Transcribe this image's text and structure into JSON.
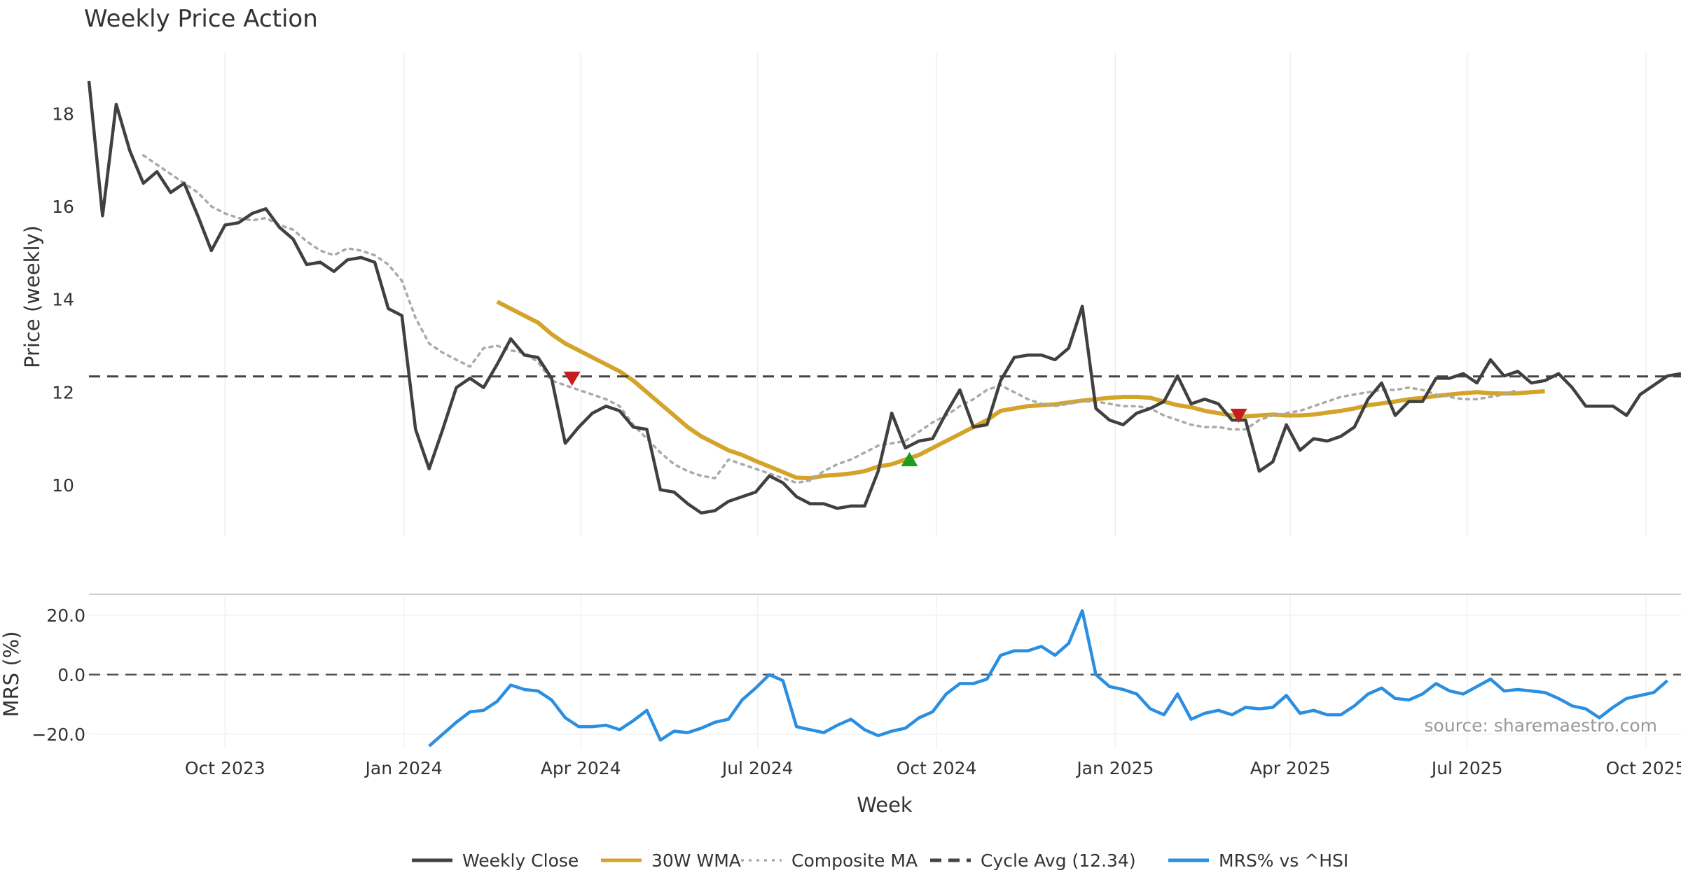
{
  "chart_data": {
    "type": "line",
    "title": "Weekly Price Action",
    "source": "source: sharemaestro.com",
    "xlabel": "Week",
    "x_ticks": [
      "Oct 2023",
      "Jan 2024",
      "Apr 2024",
      "Jul 2024",
      "Oct 2024",
      "Jan 2025",
      "Apr 2025",
      "Jul 2025",
      "Oct 2025"
    ],
    "start_week": "2023-07-23",
    "week_count": 118,
    "top_panel": {
      "ylabel": "Price (weekly)",
      "ylim": [
        8.9,
        19.3
      ],
      "y_ticks": [
        10,
        12,
        14,
        16,
        18
      ],
      "series": [
        {
          "name": "Weekly Close",
          "color": "#404040",
          "style": "solid",
          "start": 0,
          "values": [
            18.7,
            15.8,
            18.2,
            17.2,
            16.5,
            16.75,
            16.3,
            16.5,
            15.8,
            15.05,
            15.6,
            15.65,
            15.85,
            15.95,
            15.55,
            15.3,
            14.75,
            14.8,
            14.6,
            14.85,
            14.9,
            14.8,
            13.8,
            13.65,
            11.2,
            10.35,
            11.2,
            12.1,
            12.3,
            12.1,
            12.6,
            13.15,
            12.8,
            12.75,
            12.3,
            10.9,
            11.25,
            11.55,
            11.7,
            11.6,
            11.25,
            11.2,
            9.9,
            9.85,
            9.6,
            9.4,
            9.45,
            9.65,
            9.75,
            9.85,
            10.2,
            10.05,
            9.75,
            9.6,
            9.6,
            9.5,
            9.55,
            9.55,
            10.3,
            11.55,
            10.8,
            10.95,
            11.0,
            11.55,
            12.05,
            11.25,
            11.3,
            12.25,
            12.75,
            12.8,
            12.8,
            12.7,
            12.95,
            13.85,
            11.65,
            11.4,
            11.3,
            11.55,
            11.65,
            11.8,
            12.35,
            11.75,
            11.85,
            11.75,
            11.4,
            11.4,
            10.3,
            10.5,
            11.3,
            10.75,
            11.0,
            10.95,
            11.05,
            11.25,
            11.85,
            12.2,
            11.5,
            11.8,
            11.8,
            12.3,
            12.3,
            12.4,
            12.2,
            12.7,
            12.35,
            12.45,
            12.2,
            12.25,
            12.4,
            12.1,
            11.7,
            11.7,
            11.7,
            11.5,
            11.95,
            12.15,
            12.35,
            12.4
          ]
        },
        {
          "name": "30W WMA",
          "color": "#D4A32A",
          "style": "solid",
          "start": 30,
          "values": [
            13.95,
            13.8,
            13.65,
            13.5,
            13.25,
            13.05,
            12.9,
            12.75,
            12.6,
            12.45,
            12.25,
            12.0,
            11.75,
            11.5,
            11.25,
            11.05,
            10.9,
            10.75,
            10.65,
            10.52,
            10.4,
            10.28,
            10.16,
            10.15,
            10.2,
            10.22,
            10.25,
            10.3,
            10.4,
            10.45,
            10.55,
            10.65,
            10.8,
            10.95,
            11.1,
            11.25,
            11.4,
            11.6,
            11.65,
            11.7,
            11.72,
            11.74,
            11.78,
            11.82,
            11.85,
            11.88,
            11.9,
            11.9,
            11.88,
            11.8,
            11.72,
            11.68,
            11.6,
            11.55,
            11.5,
            11.48,
            11.5,
            11.52,
            11.5,
            11.5,
            11.52,
            11.56,
            11.6,
            11.65,
            11.72,
            11.76,
            11.8,
            11.85,
            11.88,
            11.92,
            11.95,
            11.98,
            12.0,
            11.98,
            11.97,
            11.98,
            12.0,
            12.02
          ]
        },
        {
          "name": "Composite MA",
          "color": "#AAAAAA",
          "style": "dotted",
          "start": 4,
          "values": [
            17.1,
            16.9,
            16.7,
            16.5,
            16.3,
            16.0,
            15.85,
            15.75,
            15.7,
            15.75,
            15.6,
            15.5,
            15.25,
            15.05,
            14.95,
            15.1,
            15.05,
            14.95,
            14.75,
            14.4,
            13.6,
            13.05,
            12.85,
            12.7,
            12.55,
            12.95,
            13.0,
            12.9,
            12.85,
            12.65,
            12.25,
            12.15,
            12.05,
            11.95,
            11.85,
            11.7,
            11.3,
            11.0,
            10.7,
            10.45,
            10.3,
            10.2,
            10.15,
            10.55,
            10.45,
            10.35,
            10.25,
            10.15,
            10.05,
            10.1,
            10.3,
            10.45,
            10.55,
            10.7,
            10.85,
            10.9,
            10.95,
            11.15,
            11.35,
            11.5,
            11.7,
            11.85,
            12.05,
            12.15,
            12.0,
            11.85,
            11.75,
            11.7,
            11.75,
            11.8,
            11.8,
            11.75,
            11.7,
            11.7,
            11.65,
            11.5,
            11.4,
            11.3,
            11.25,
            11.25,
            11.2,
            11.2,
            11.4,
            11.5,
            11.55,
            11.6,
            11.7,
            11.8,
            11.9,
            11.95,
            12.0,
            12.05,
            12.05,
            12.1,
            12.05,
            11.95,
            11.9,
            11.85,
            11.85,
            11.9,
            11.95,
            12.05
          ]
        },
        {
          "name": "Cycle Avg (12.34)",
          "color": "#444444",
          "style": "dashed",
          "value": 12.34
        }
      ],
      "markers": [
        {
          "type": "sell",
          "week": 35.5,
          "value": 12.3,
          "color": "#C41E1E"
        },
        {
          "type": "buy",
          "week": 60.3,
          "value": 10.55,
          "color": "#1E9E1E"
        },
        {
          "type": "sell",
          "week": 84.5,
          "value": 11.5,
          "color": "#C41E1E"
        }
      ]
    },
    "bottom_panel": {
      "ylabel": "MRS (%)",
      "ylim": [
        -25,
        27
      ],
      "y_ticks": [
        {
          "value": 20,
          "label": "20.0"
        },
        {
          "value": 0,
          "label": "0.0"
        },
        {
          "value": -20,
          "label": "−20.0"
        }
      ],
      "zero_line": true,
      "series": [
        {
          "name": "MRS% vs ^HSI",
          "color": "#2A8FE0",
          "style": "solid",
          "start": 25,
          "values": [
            -24,
            -20,
            -16,
            -12.5,
            -12,
            -9,
            -3.5,
            -5,
            -5.5,
            -8.5,
            -14.5,
            -17.5,
            -17.5,
            -17,
            -18.5,
            -15.5,
            -12,
            -22,
            -19,
            -19.5,
            -18,
            -16,
            -15,
            -8.5,
            -4.5,
            0,
            -2,
            -17.5,
            -18.5,
            -19.5,
            -17,
            -15,
            -18.5,
            -20.5,
            -19,
            -18,
            -14.5,
            -12.5,
            -6.5,
            -3,
            -3,
            -1.5,
            6.5,
            8,
            8,
            9.5,
            6.5,
            10.5,
            21.5,
            0,
            -4,
            -5,
            -6.5,
            -11.5,
            -13.5,
            -6.5,
            -15,
            -13,
            -12,
            -13.5,
            -11,
            -11.5,
            -11,
            -7,
            -13,
            -12,
            -13.5,
            -13.5,
            -10.5,
            -6.5,
            -4.5,
            -8,
            -8.5,
            -6.5,
            -3,
            -5.5,
            -6.5,
            -4,
            -1.5,
            -5.5,
            -5,
            -5.5,
            -6,
            -8,
            -10.5,
            -11.5,
            -14.5,
            -11,
            -8,
            -7,
            -6,
            -2
          ]
        }
      ]
    },
    "legend": [
      {
        "label": "Weekly Close",
        "color": "#404040",
        "style": "solid"
      },
      {
        "label": "30W WMA",
        "color": "#D4A32A",
        "style": "solid"
      },
      {
        "label": "Composite MA",
        "color": "#AAAAAA",
        "style": "dotted"
      },
      {
        "label": "Cycle Avg (12.34)",
        "color": "#444444",
        "style": "dashed"
      },
      {
        "label": "MRS% vs ^HSI",
        "color": "#2A8FE0",
        "style": "solid"
      }
    ],
    "legend_position": "bottom-center"
  }
}
